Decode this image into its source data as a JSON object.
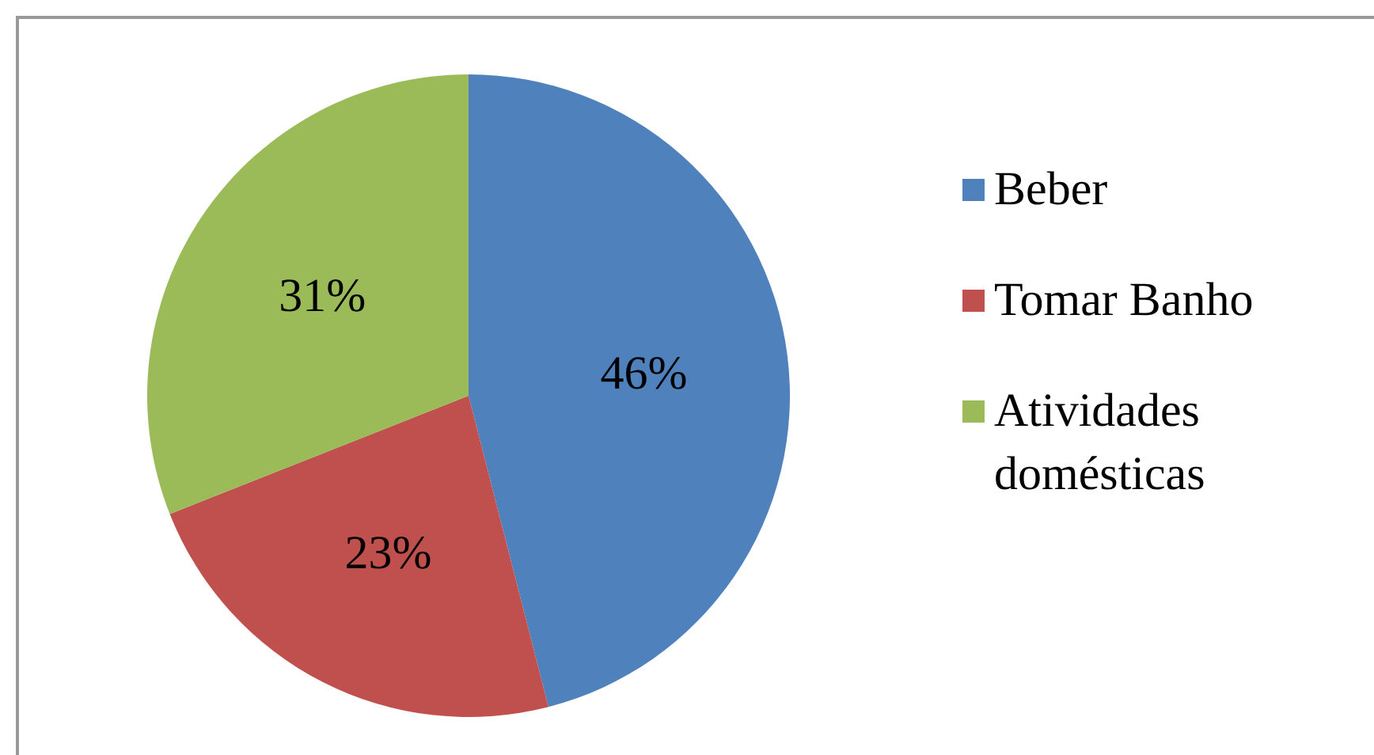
{
  "chart_data": {
    "type": "pie",
    "categories": [
      "Beber",
      "Tomar Banho",
      "Atividades domésticas"
    ],
    "values": [
      46,
      23,
      31
    ],
    "colors": [
      "#4f81bd",
      "#c0504d",
      "#9bbb59"
    ],
    "value_labels": [
      "46%",
      "23%",
      "31%"
    ],
    "legend": "right"
  }
}
